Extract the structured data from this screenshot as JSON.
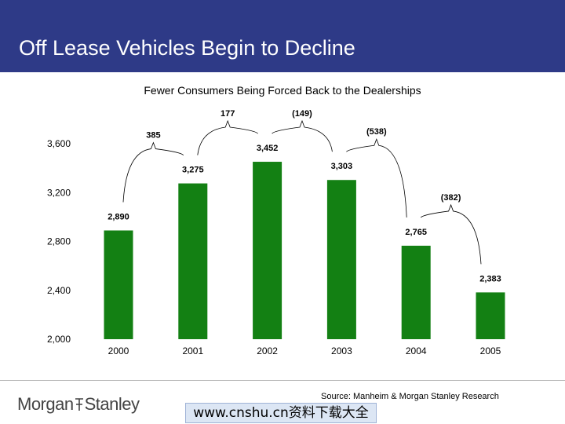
{
  "header": {
    "title": "Off Lease Vehicles Begin to Decline"
  },
  "chart_data": {
    "type": "bar",
    "title": "Fewer Consumers Being Forced Back to the Dealerships",
    "categories": [
      "2000",
      "2001",
      "2002",
      "2003",
      "2004",
      "2005"
    ],
    "values": [
      2890,
      3275,
      3452,
      3303,
      2765,
      2383
    ],
    "value_labels": [
      "2,890",
      "3,275",
      "3,452",
      "3,303",
      "2,765",
      "2,383"
    ],
    "changes": [
      "385",
      "177",
      "(149)",
      "(538)",
      "(382)"
    ],
    "yticks": [
      2000,
      2400,
      2800,
      3200,
      3600
    ],
    "ytick_labels": [
      "2,000",
      "2,400",
      "2,800",
      "3,200",
      "3,600"
    ],
    "ylim": [
      2000,
      3600
    ],
    "xlabel": "",
    "ylabel": "",
    "grid": false,
    "bar_color": "#138013"
  },
  "footer": {
    "source": "Source: Manheim & Morgan Stanley Research",
    "logo_text": "MorganStanley",
    "watermark": "www.cnshu.cn资料下载大全"
  },
  "colors": {
    "header_bg": "#2e3a87",
    "header_text": "#ffffff"
  }
}
